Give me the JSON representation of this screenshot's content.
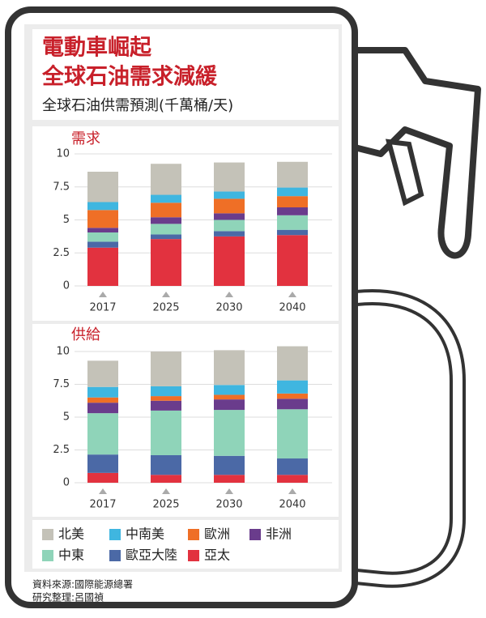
{
  "header": {
    "title_lines": [
      "電動車崛起",
      "全球石油需求減緩"
    ],
    "subtitle": "全球石油供需預測(千萬桶/天)"
  },
  "chart_data": [
    {
      "type": "bar",
      "stacked": true,
      "title": "需求",
      "categories": [
        "2017",
        "2025",
        "2030",
        "2040"
      ],
      "ylim": [
        0,
        10
      ],
      "yticks": [
        0,
        2.5,
        5,
        7.5,
        10
      ],
      "series": [
        {
          "name": "北美",
          "color": "#c4c2b8",
          "values": [
            2.3,
            2.35,
            2.2,
            1.95
          ]
        },
        {
          "name": "中南美",
          "color": "#3fb6e0",
          "values": [
            0.6,
            0.6,
            0.55,
            0.65
          ]
        },
        {
          "name": "歐洲",
          "color": "#ef6f26",
          "values": [
            1.35,
            1.1,
            1.1,
            0.85
          ]
        },
        {
          "name": "非洲",
          "color": "#6a3c8c",
          "values": [
            0.35,
            0.5,
            0.5,
            0.6
          ]
        },
        {
          "name": "中東",
          "color": "#8fd4b9",
          "values": [
            0.7,
            0.8,
            0.85,
            1.1
          ]
        },
        {
          "name": "歐亞大陸",
          "color": "#4b69a6",
          "values": [
            0.45,
            0.35,
            0.4,
            0.4
          ]
        },
        {
          "name": "亞太",
          "color": "#e2323f",
          "values": [
            2.9,
            3.55,
            3.75,
            3.85
          ]
        }
      ]
    },
    {
      "type": "bar",
      "stacked": true,
      "title": "供給",
      "categories": [
        "2017",
        "2025",
        "2030",
        "2040"
      ],
      "ylim": [
        0,
        10
      ],
      "yticks": [
        0,
        2.5,
        5,
        7.5,
        10
      ],
      "series": [
        {
          "color": "#c4c2b8",
          "values": [
            2.0,
            2.65,
            2.65,
            2.6
          ]
        },
        {
          "color": "#3fb6e0",
          "values": [
            0.8,
            0.75,
            0.75,
            1.0
          ]
        },
        {
          "color": "#ef6f26",
          "values": [
            0.4,
            0.35,
            0.35,
            0.4
          ]
        },
        {
          "color": "#6a3c8c",
          "values": [
            0.8,
            0.75,
            0.8,
            0.8
          ]
        },
        {
          "color": "#8fd4b9",
          "values": [
            3.15,
            3.4,
            3.5,
            3.75
          ]
        },
        {
          "color": "#4b69a6",
          "values": [
            1.4,
            1.5,
            1.45,
            1.25
          ]
        },
        {
          "color": "#e2323f",
          "values": [
            0.75,
            0.6,
            0.6,
            0.6
          ]
        }
      ]
    }
  ],
  "source": [
    "資料來源:國際能源總署",
    "研究整理:呂國禎"
  ]
}
